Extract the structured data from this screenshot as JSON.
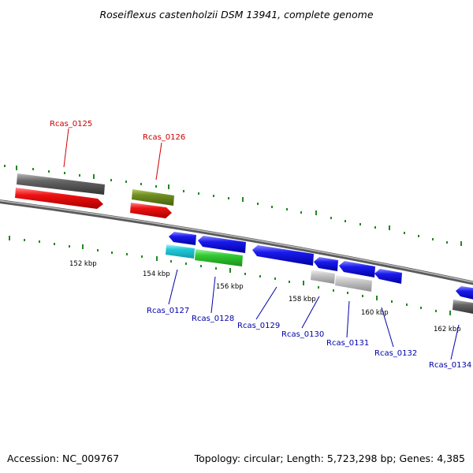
{
  "title": "Roseiflexus castenholzii DSM 13941, complete genome",
  "footer": {
    "accession": "Accession: NC_009767",
    "summary": "Topology: circular; Length: 5,723,298 bp; Genes: 4,385"
  },
  "colors": {
    "red": "#ee1111",
    "gray_dark": "#666666",
    "olive": "#6f8f22",
    "blue": "#1a1aee",
    "cyan": "#22c8d8",
    "green": "#33cc33",
    "gray_light": "#bbbbbb",
    "tick": "#228822",
    "label_top": "#cc0000",
    "label_bottom": "#0000aa"
  },
  "kbp_labels": [
    "152 kbp",
    "154 kbp",
    "156 kbp",
    "158 kbp",
    "160 kbp",
    "162 kbp"
  ],
  "gene_labels": {
    "top": [
      "Rcas_0125",
      "Rcas_0126"
    ],
    "bottom": [
      "Rcas_0127",
      "Rcas_0128",
      "Rcas_0129",
      "Rcas_0130",
      "Rcas_0131",
      "Rcas_0132",
      "Rcas_0134"
    ]
  }
}
